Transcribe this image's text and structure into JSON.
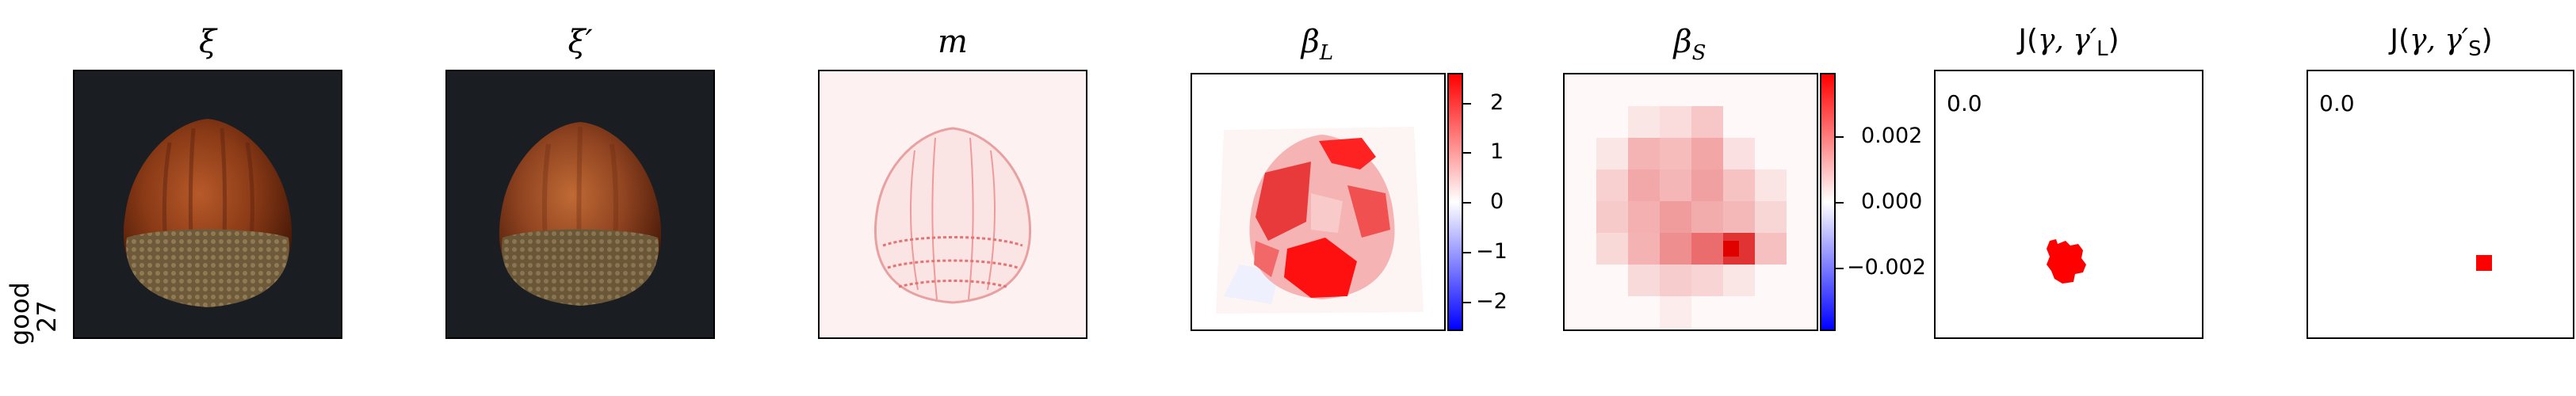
{
  "row": {
    "label_line1": "good",
    "label_line2": "27"
  },
  "panels": {
    "xi": {
      "title": "ξ"
    },
    "xi_prime": {
      "title": "ξ′"
    },
    "m": {
      "title": "m"
    },
    "beta_L": {
      "title_base": "β",
      "title_sub": "L",
      "colorbar_ticks": [
        "2",
        "1",
        "0",
        "−1",
        "−2"
      ]
    },
    "beta_S": {
      "title_base": "β",
      "title_sub": "S",
      "colorbar_ticks": [
        "0.002",
        "0.000",
        "−0.002"
      ]
    },
    "J_L": {
      "title_prefix": "J(",
      "title_args": "γ, γ′",
      "title_sub": "L",
      "title_suffix": ")",
      "value": "0.0"
    },
    "J_S": {
      "title_prefix": "J(",
      "title_args": "γ, γ′",
      "title_sub": "S",
      "title_suffix": ")",
      "value": "0.0"
    }
  },
  "colors": {
    "photo_background": "#1a1d22",
    "shell": "#7a3214",
    "marker_red": "#ff0000"
  }
}
